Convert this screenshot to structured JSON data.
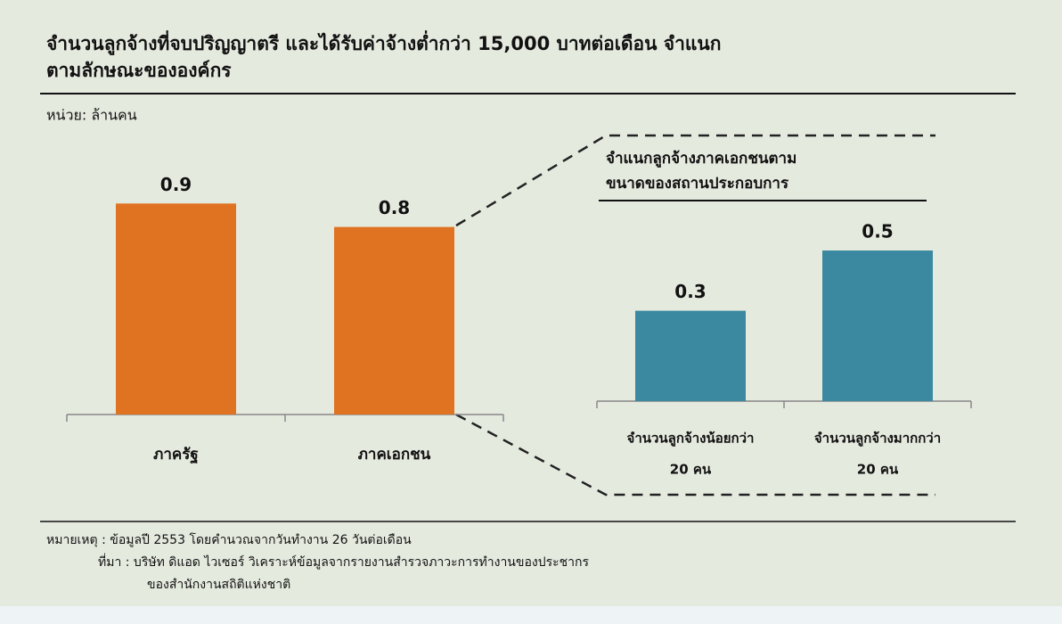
{
  "chart_data": [
    {
      "type": "bar",
      "title": [
        "จำนวนลูกจ้างที่จบปริญญาตรี และได้รับค่าจ้างต่ำกว่า 15,000 บาทต่อเดือน จำแนก",
        "ตามลักษณะขององค์กร"
      ],
      "subtitle": "หน่วย: ล้านคน",
      "categories": [
        [
          "ภาครัฐ"
        ],
        [
          "ภาคเอกชน"
        ]
      ],
      "values": [
        0.9,
        0.8
      ],
      "color": "#e07322"
    },
    {
      "type": "bar",
      "title": [
        "จำแนกลูกจ้างภาคเอกชนตาม",
        "ขนาดของสถานประกอบการ"
      ],
      "categories": [
        [
          "จำนวนลูกจ้างน้อยกว่า",
          "20 คน"
        ],
        [
          "จำนวนลูกจ้างมากกว่า",
          "20 คน"
        ]
      ],
      "values": [
        0.3,
        0.5
      ],
      "color": "#3a89a0"
    }
  ],
  "notes": [
    "หมายเหตุ : ข้อมูลปี 2553 โดยคำนวณจากวันทำงาน 26 วันต่อเดือน",
    "ที่มา : บริษัท ดิแอด ไวเซอร์ วิเคราะห์ข้อมูลจากรายงานสำรวจภาวะการทำงานของประชากร",
    "ของสำนักงานสถิติแห่งชาติ"
  ]
}
